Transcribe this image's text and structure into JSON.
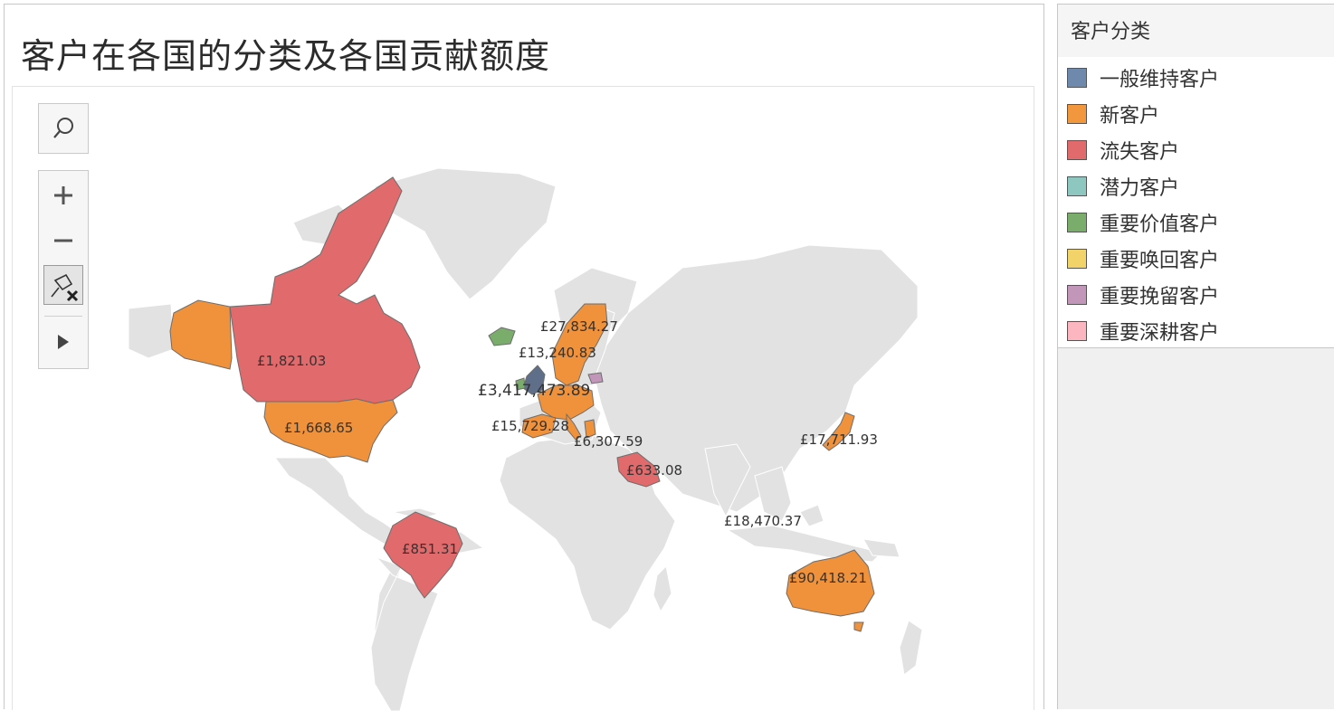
{
  "title": "客户在各国的分类及各国贡献额度",
  "legend": {
    "title": "客户分类",
    "items": [
      {
        "label": "一般维持客户",
        "color": "#6f89ac"
      },
      {
        "label": "新客户",
        "color": "#f3973f"
      },
      {
        "label": "流失客户",
        "color": "#e16a6c"
      },
      {
        "label": "潜力客户",
        "color": "#8ec6c0"
      },
      {
        "label": "重要价值客户",
        "color": "#7aad6c"
      },
      {
        "label": "重要唤回客户",
        "color": "#f2d36a"
      },
      {
        "label": "重要挽留客户",
        "color": "#c196b8"
      },
      {
        "label": "重要深耕客户",
        "color": "#fbb6c0"
      }
    ]
  },
  "map_labels": [
    {
      "country": "Canada",
      "text": "£1,821.03"
    },
    {
      "country": "United States",
      "text": "£1,668.65"
    },
    {
      "country": "Brazil",
      "text": "£851.31"
    },
    {
      "country": "Sweden",
      "text": "£27,834.27"
    },
    {
      "country": "Norway",
      "text": "£13,240.83"
    },
    {
      "country": "United Kingdom",
      "text": "£3,417,473.89"
    },
    {
      "country": "Spain",
      "text": "£15,729.28"
    },
    {
      "country": "Israel",
      "text": "£6,307.59"
    },
    {
      "country": "Saudi Arabia",
      "text": "£633.08"
    },
    {
      "country": "Japan",
      "text": "£17,711.93"
    },
    {
      "country": "Singapore",
      "text": "£18,470.37"
    },
    {
      "country": "Australia",
      "text": "£90,418.21"
    }
  ],
  "colors": {
    "land": "#e0e0e0",
    "border": "#8b8b8b"
  },
  "icons": {
    "search": "search-icon",
    "zoom_in": "plus-icon",
    "zoom_out": "minus-icon",
    "pin": "pin-reset-icon",
    "expand": "play-icon"
  }
}
